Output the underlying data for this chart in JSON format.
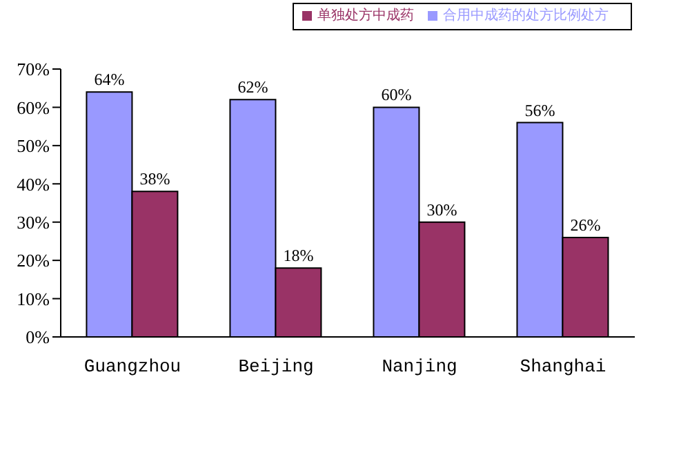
{
  "chart_data": {
    "type": "bar",
    "categories": [
      "Guangzhou",
      "Beijing",
      "Nanjing",
      "Shanghai"
    ],
    "series": [
      {
        "name": "合用中成药的处方比例处方",
        "color": "#9999ff",
        "values": [
          64,
          62,
          60,
          56
        ],
        "value_labels": [
          "64%",
          "62%",
          "60%",
          "56%"
        ]
      },
      {
        "name": "单独处方中成药",
        "color": "#993366",
        "values": [
          38,
          18,
          30,
          26
        ],
        "value_labels": [
          "38%",
          "18%",
          "30%",
          "26%"
        ]
      }
    ],
    "ylim": [
      0,
      70
    ],
    "yticks": [
      {
        "value": 0,
        "label": "0%"
      },
      {
        "value": 10,
        "label": "10%"
      },
      {
        "value": 20,
        "label": "20%"
      },
      {
        "value": 30,
        "label": "30%"
      },
      {
        "value": 40,
        "label": "40%"
      },
      {
        "value": 50,
        "label": "50%"
      },
      {
        "value": 60,
        "label": "60%"
      },
      {
        "value": 70,
        "label": "70%"
      }
    ],
    "grid": false,
    "legend": "top right"
  }
}
